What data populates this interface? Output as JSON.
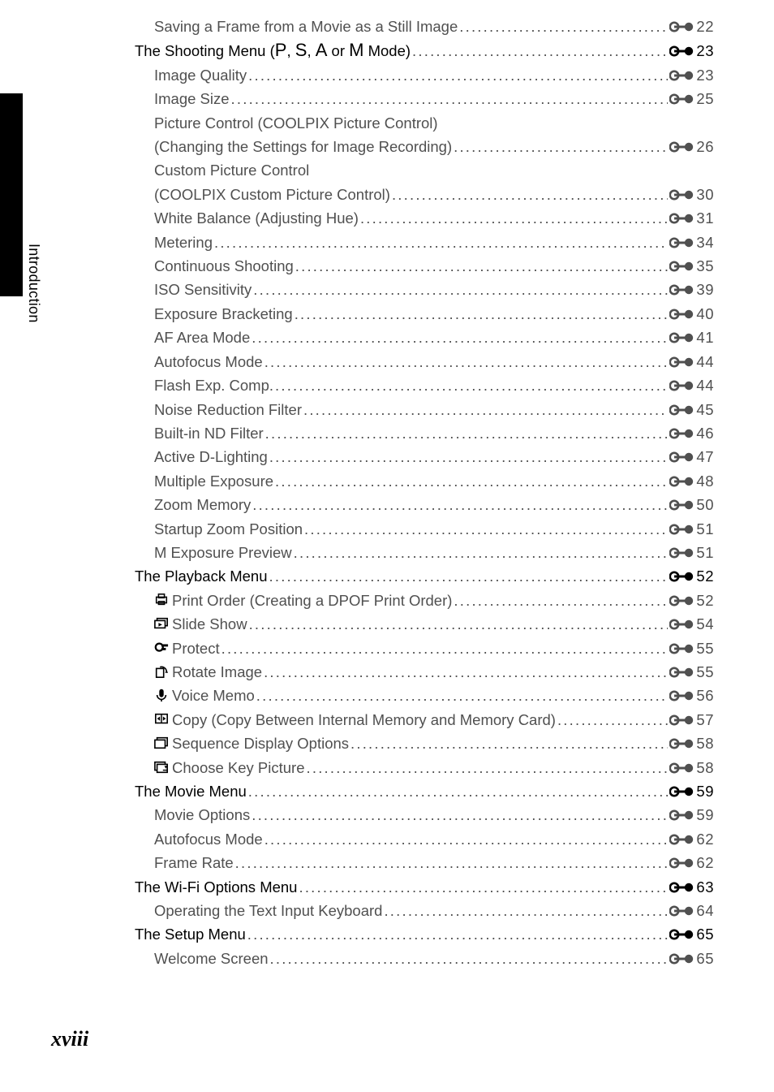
{
  "sidebar_label": "Introduction",
  "page_number": "xviii",
  "leader_dots": "...........................................................................................................................................................",
  "colors": {
    "black": "#000000",
    "gray_text": "#505050",
    "background": "#ffffff"
  },
  "toc": [
    {
      "indent": 2,
      "label": "Saving a Frame from a Movie as a Still Image",
      "page": "22",
      "bold": false,
      "icon": null
    },
    {
      "indent": 1,
      "label_html": "The Shooting Menu (<span class='mode-letter'>P</span>, <span class='mode-letter'>S</span>, <span class='mode-letter'>A</span> or <span class='mode-letter'>M</span> Mode)",
      "page": "23",
      "bold": true,
      "icon": null
    },
    {
      "indent": 2,
      "label": "Image Quality",
      "page": "23",
      "bold": false,
      "icon": null
    },
    {
      "indent": 2,
      "label": "Image Size",
      "page": "25",
      "bold": false,
      "icon": null
    },
    {
      "indent": 2,
      "label": "Picture Control (COOLPIX Picture Control)",
      "no_page": true,
      "bold": false,
      "icon": null
    },
    {
      "indent": 2,
      "label": "(Changing the Settings for Image Recording)",
      "page": "26",
      "bold": false,
      "icon": null
    },
    {
      "indent": 2,
      "label": "Custom Picture Control",
      "no_page": true,
      "bold": false,
      "icon": null
    },
    {
      "indent": 2,
      "label": "(COOLPIX Custom Picture Control)",
      "page": "30",
      "bold": false,
      "icon": null
    },
    {
      "indent": 2,
      "label": "White Balance (Adjusting Hue)",
      "page": "31",
      "bold": false,
      "icon": null
    },
    {
      "indent": 2,
      "label": "Metering",
      "page": "34",
      "bold": false,
      "icon": null
    },
    {
      "indent": 2,
      "label": "Continuous Shooting",
      "page": "35",
      "bold": false,
      "icon": null
    },
    {
      "indent": 2,
      "label": "ISO Sensitivity",
      "page": "39",
      "bold": false,
      "icon": null
    },
    {
      "indent": 2,
      "label": "Exposure Bracketing",
      "page": "40",
      "bold": false,
      "icon": null
    },
    {
      "indent": 2,
      "label": "AF Area Mode",
      "page": "41",
      "bold": false,
      "icon": null
    },
    {
      "indent": 2,
      "label": "Autofocus Mode",
      "page": "44",
      "bold": false,
      "icon": null
    },
    {
      "indent": 2,
      "label": "Flash Exp. Comp. ",
      "page": "44",
      "bold": false,
      "icon": null
    },
    {
      "indent": 2,
      "label": "Noise Reduction Filter",
      "page": "45",
      "bold": false,
      "icon": null
    },
    {
      "indent": 2,
      "label": "Built-in ND Filter",
      "page": "46",
      "bold": false,
      "icon": null
    },
    {
      "indent": 2,
      "label": "Active D-Lighting",
      "page": "47",
      "bold": false,
      "icon": null
    },
    {
      "indent": 2,
      "label": "Multiple Exposure",
      "page": "48",
      "bold": false,
      "icon": null
    },
    {
      "indent": 2,
      "label": "Zoom Memory",
      "page": "50",
      "bold": false,
      "icon": null
    },
    {
      "indent": 2,
      "label": "Startup Zoom Position",
      "page": "51",
      "bold": false,
      "icon": null
    },
    {
      "indent": 2,
      "label": "M Exposure Preview ",
      "page": "51",
      "bold": false,
      "icon": null
    },
    {
      "indent": 1,
      "label": "The Playback Menu",
      "page": "52",
      "bold": true,
      "icon": null
    },
    {
      "indent": 2,
      "label": "Print Order (Creating a DPOF Print Order)",
      "page": "52",
      "bold": false,
      "icon": "print"
    },
    {
      "indent": 2,
      "label": "Slide Show",
      "page": "54",
      "bold": false,
      "icon": "slide"
    },
    {
      "indent": 2,
      "label": "Protect",
      "page": "55",
      "bold": false,
      "icon": "protect"
    },
    {
      "indent": 2,
      "label": "Rotate Image ",
      "page": "55",
      "bold": false,
      "icon": "rotate"
    },
    {
      "indent": 2,
      "label": "Voice Memo",
      "page": "56",
      "bold": false,
      "icon": "voice"
    },
    {
      "indent": 2,
      "label": "Copy (Copy Between Internal Memory and Memory Card)",
      "page": "57",
      "bold": false,
      "icon": "copy"
    },
    {
      "indent": 2,
      "label": "Sequence Display Options",
      "page": "58",
      "bold": false,
      "icon": "sequence"
    },
    {
      "indent": 2,
      "label": "Choose Key Picture ",
      "page": "58",
      "bold": false,
      "icon": "key"
    },
    {
      "indent": 1,
      "label": "The Movie Menu ",
      "page": "59",
      "bold": true,
      "icon": null
    },
    {
      "indent": 2,
      "label": "Movie Options",
      "page": "59",
      "bold": false,
      "icon": null
    },
    {
      "indent": 2,
      "label": "Autofocus Mode",
      "page": "62",
      "bold": false,
      "icon": null
    },
    {
      "indent": 2,
      "label": "Frame Rate ",
      "page": "62",
      "bold": false,
      "icon": null
    },
    {
      "indent": 1,
      "label": "The Wi-Fi Options Menu",
      "page": "63",
      "bold": true,
      "icon": null
    },
    {
      "indent": 2,
      "label": "Operating the Text Input Keyboard",
      "page": "64",
      "bold": false,
      "icon": null
    },
    {
      "indent": 1,
      "label": "The Setup Menu",
      "page": "65",
      "bold": true,
      "icon": null
    },
    {
      "indent": 2,
      "label": "Welcome Screen",
      "page": "65",
      "bold": false,
      "icon": null
    }
  ]
}
